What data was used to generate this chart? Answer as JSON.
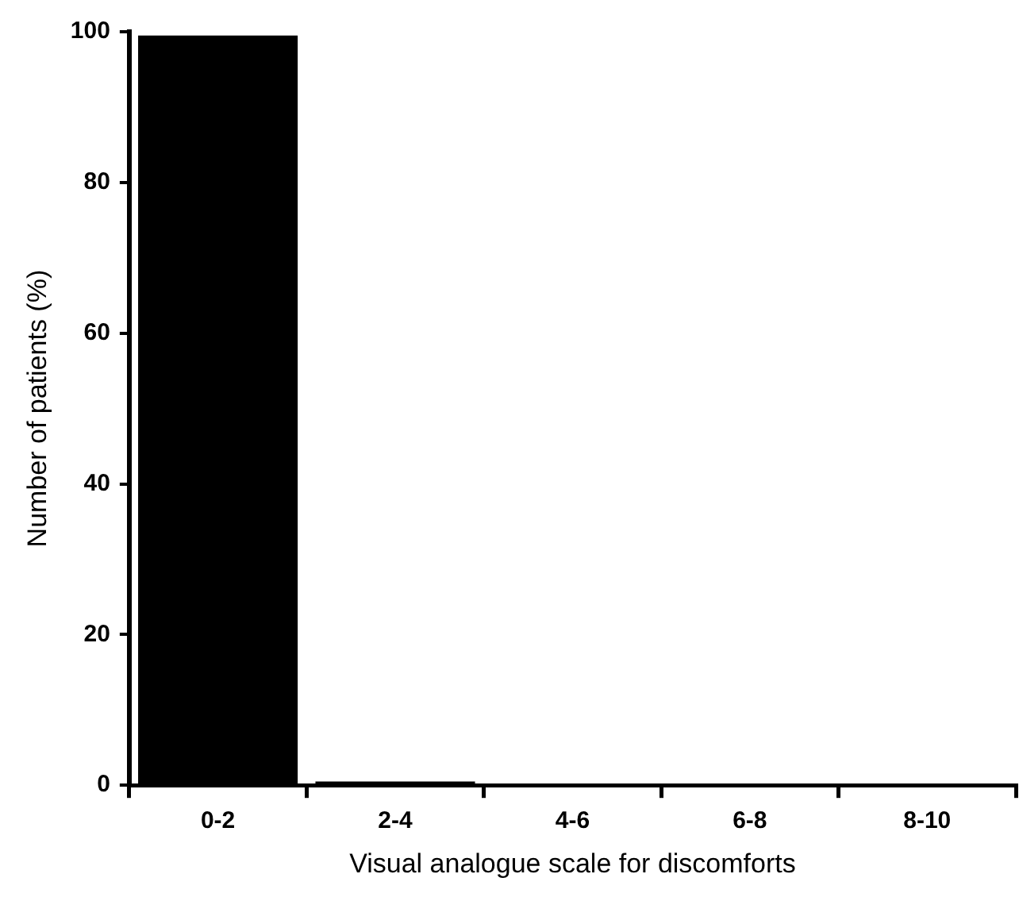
{
  "chart_data": {
    "type": "bar",
    "xlabel": "Visual analogue scale for discomforts",
    "ylabel": "Number of patients (%)",
    "categories": [
      "0-2",
      "2-4",
      "4-6",
      "6-8",
      "8-10"
    ],
    "values": [
      99.5,
      0.5,
      0,
      0,
      0
    ],
    "color": "#000000",
    "ylim": [
      0,
      100
    ],
    "yticks": [
      0,
      20,
      40,
      60,
      80,
      100
    ],
    "grid": false,
    "legend": false
  }
}
